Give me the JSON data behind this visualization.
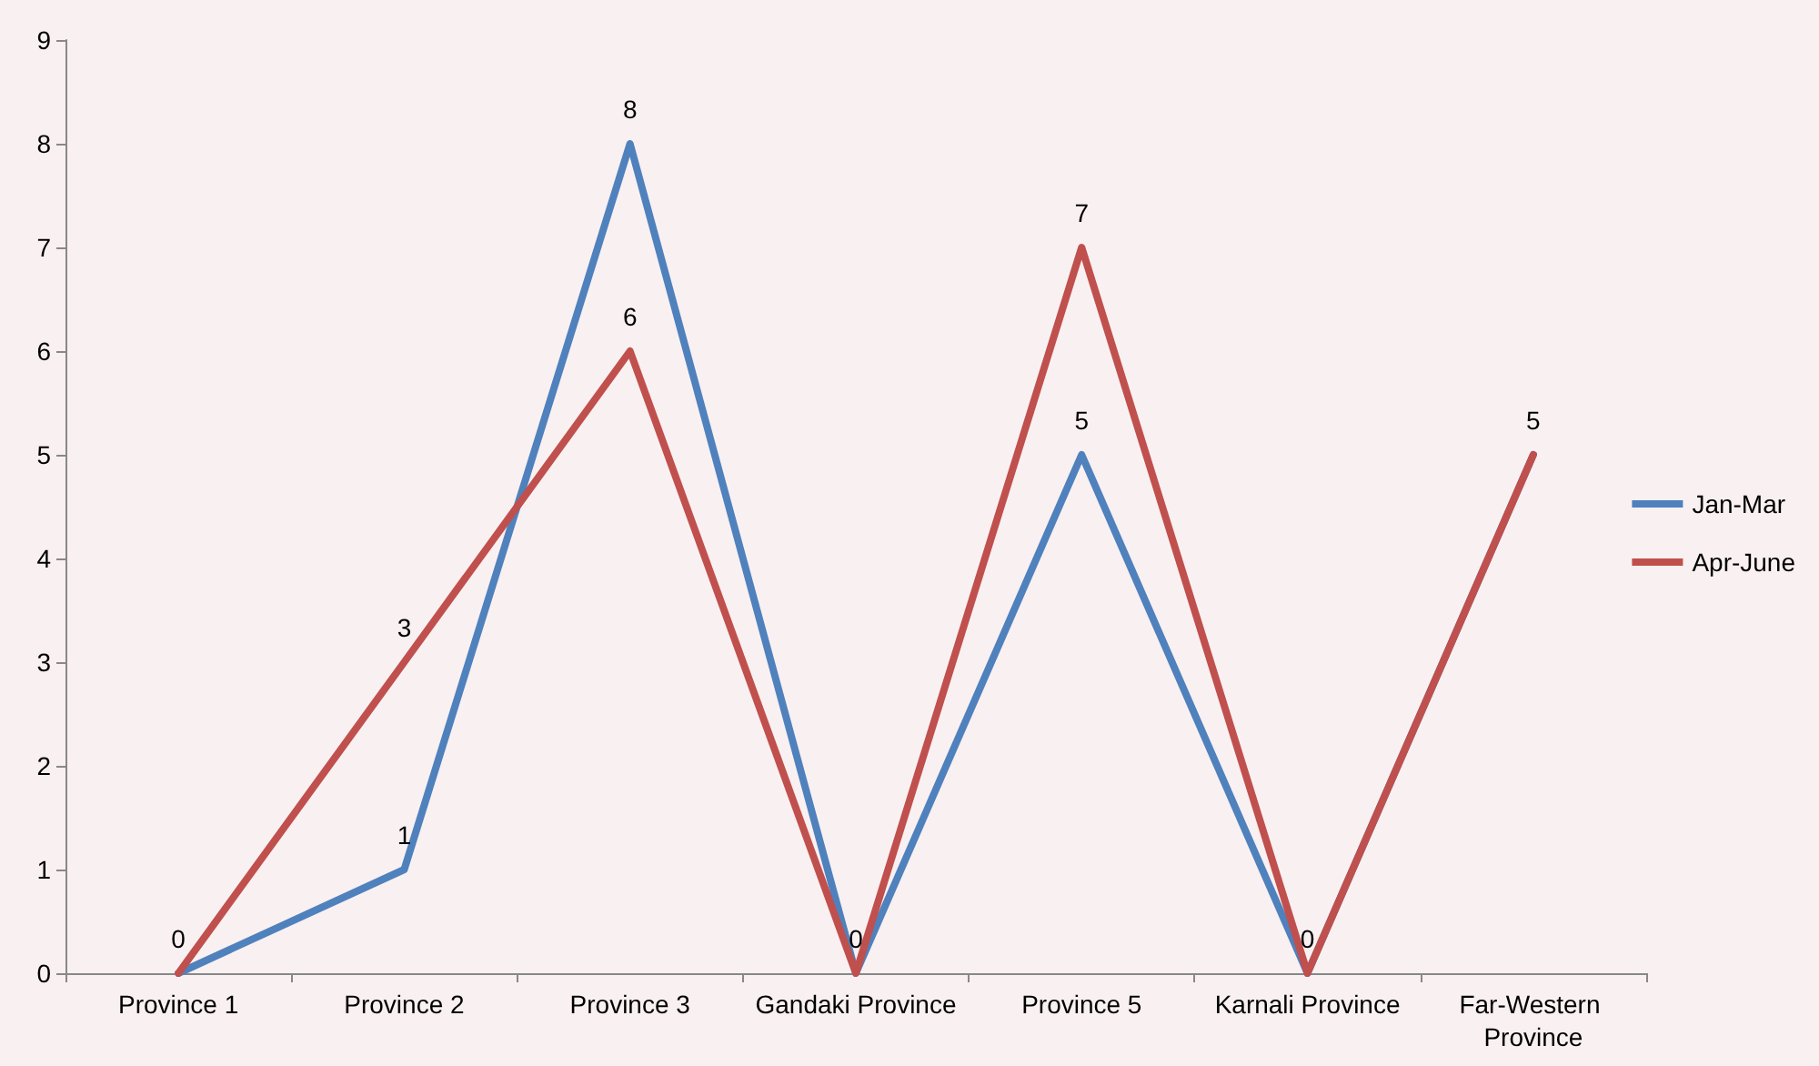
{
  "chart_data": {
    "type": "line",
    "categories": [
      "Province 1",
      "Province 2",
      "Province 3",
      "Gandaki Province",
      "Province 5",
      "Karnali Province",
      "Far-Western Province"
    ],
    "series": [
      {
        "name": "Jan-Mar",
        "color": "#4f81bd",
        "values": [
          0,
          1,
          8,
          0,
          5,
          0,
          5
        ],
        "value_labels": [
          "0",
          "1",
          "8",
          "0",
          "5",
          "0",
          "5"
        ]
      },
      {
        "name": "Apr-June",
        "color": "#c0504d",
        "values": [
          0,
          3,
          6,
          0,
          7,
          0,
          5
        ],
        "value_labels": [
          null,
          "3",
          "6",
          null,
          "7",
          null,
          null
        ]
      }
    ],
    "ylim": [
      0,
      9
    ],
    "yticks": [
      0,
      1,
      2,
      3,
      4,
      5,
      6,
      7,
      8,
      9
    ],
    "grid": false,
    "legend": "right",
    "marker": "none",
    "line_style": "solid"
  }
}
